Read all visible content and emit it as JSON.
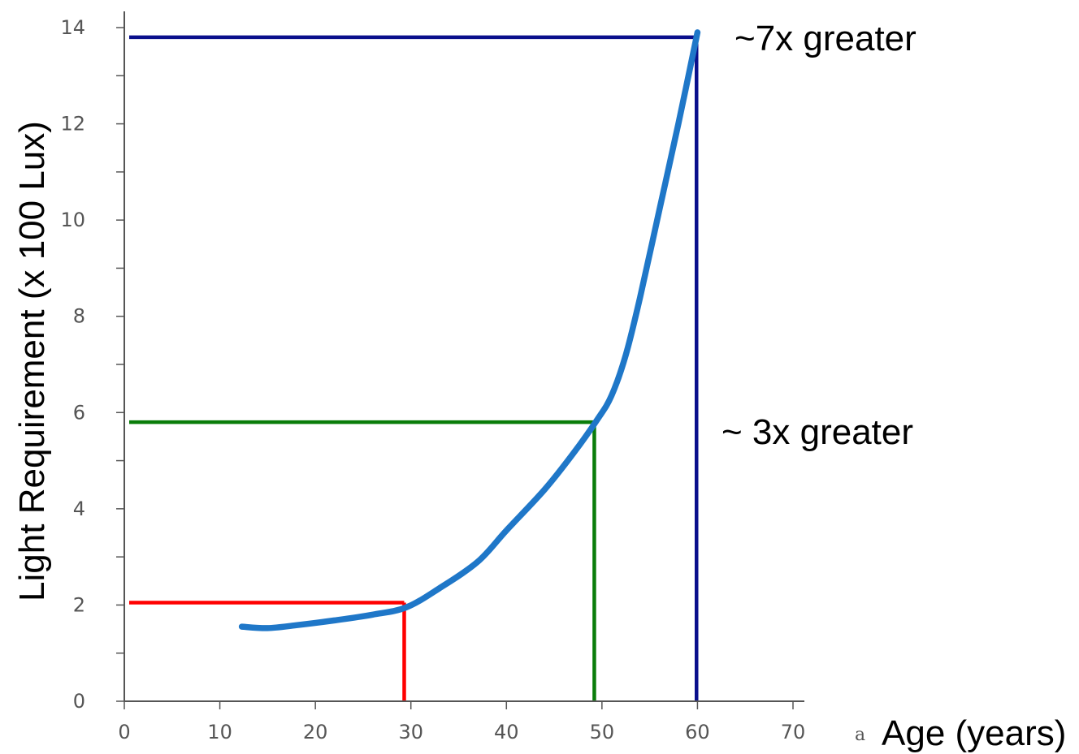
{
  "chart_data": {
    "type": "line",
    "xlabel": "Age (years)",
    "ylabel": "Light Requirement (x 100 Lux)",
    "xlim": [
      0,
      70
    ],
    "ylim": [
      0,
      14
    ],
    "x_ticks": [
      0,
      10,
      20,
      30,
      40,
      50,
      60,
      70
    ],
    "y_ticks": [
      0,
      2,
      4,
      6,
      8,
      10,
      12,
      14
    ],
    "grid": false,
    "series": [
      {
        "color": "#1f77c8",
        "x": [
          12.3,
          15,
          18,
          22,
          26,
          29.5,
          33,
          37,
          40,
          44,
          47,
          49.5,
          51,
          52.5,
          54,
          56,
          58,
          60
        ],
        "y": [
          1.55,
          1.52,
          1.58,
          1.68,
          1.8,
          1.95,
          2.35,
          2.9,
          3.55,
          4.4,
          5.15,
          5.85,
          6.35,
          7.2,
          8.4,
          10.2,
          12.0,
          13.9
        ]
      }
    ],
    "reference_lines": [
      {
        "color": "#ff0000",
        "x": 29.3,
        "y": 2.05
      },
      {
        "color": "#0a7d0a",
        "x": 49.2,
        "y": 5.8
      },
      {
        "color": "#0a0f8c",
        "x": 59.9,
        "y": 13.8
      }
    ],
    "annotations": [
      {
        "text": "~7x greater"
      },
      {
        "text": "~ 3x greater"
      }
    ],
    "stray_text": "a"
  }
}
